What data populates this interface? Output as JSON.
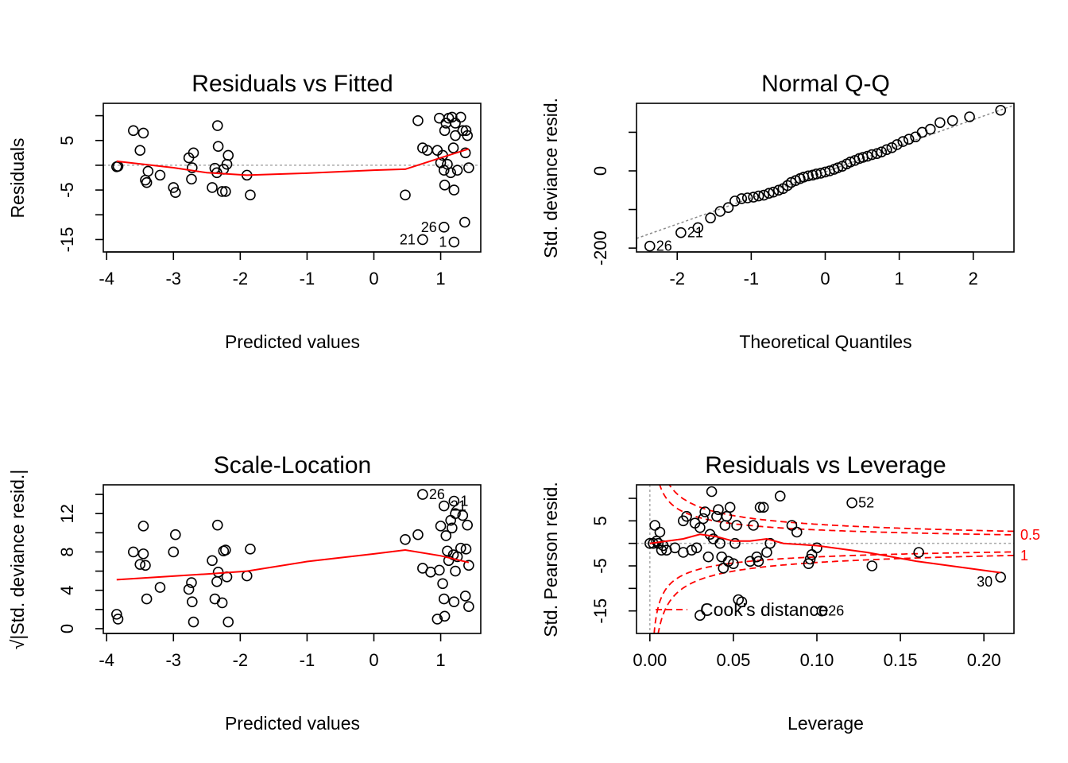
{
  "chart_data": [
    {
      "type": "scatter",
      "title": "Residuals vs Fitted",
      "xlabel": "Predicted values",
      "ylabel": "Residuals",
      "xlim": [
        -4.05,
        1.6
      ],
      "ylim": [
        -17.5,
        12.5
      ],
      "xticks": [
        -4,
        -3,
        -2,
        -1,
        0,
        1
      ],
      "yticks": [
        -15,
        -5,
        5
      ],
      "minor_yticks": [
        -10,
        0,
        10
      ],
      "reference_line_y": 0,
      "points": [
        [
          -3.85,
          -0.3
        ],
        [
          -3.83,
          -0.2
        ],
        [
          -3.6,
          7
        ],
        [
          -3.5,
          3
        ],
        [
          -3.45,
          6.5
        ],
        [
          -3.42,
          -3
        ],
        [
          -3.4,
          -3.5
        ],
        [
          -3.38,
          -1.2
        ],
        [
          -3.2,
          -2
        ],
        [
          -3,
          -4.5
        ],
        [
          -2.97,
          -5.5
        ],
        [
          -2.77,
          1.5
        ],
        [
          -2.73,
          -2.8
        ],
        [
          -2.72,
          -0.5
        ],
        [
          -2.7,
          2.5
        ],
        [
          -2.42,
          -4.5
        ],
        [
          -2.38,
          -0.6
        ],
        [
          -2.35,
          -1.5
        ],
        [
          -2.34,
          8
        ],
        [
          -2.33,
          3.8
        ],
        [
          -2.25,
          -0.8
        ],
        [
          -2.27,
          -5.3
        ],
        [
          -2.22,
          -5.3
        ],
        [
          -2.2,
          0.2
        ],
        [
          -2.18,
          2
        ],
        [
          -1.9,
          -2
        ],
        [
          -1.85,
          -6
        ],
        [
          0.47,
          -6
        ],
        [
          0.66,
          9
        ],
        [
          0.73,
          3.5
        ],
        [
          0.8,
          3
        ],
        [
          0.95,
          3
        ],
        [
          0.98,
          9.5
        ],
        [
          1,
          0.5
        ],
        [
          1.03,
          2
        ],
        [
          1.05,
          -1
        ],
        [
          1.06,
          -4
        ],
        [
          1.06,
          7
        ],
        [
          1.08,
          8.5
        ],
        [
          1.1,
          0.2
        ],
        [
          1.12,
          9.5
        ],
        [
          1.15,
          -1.5
        ],
        [
          1.17,
          9.7
        ],
        [
          1.19,
          3.5
        ],
        [
          1.2,
          -5
        ],
        [
          1.22,
          6
        ],
        [
          1.22,
          8.5
        ],
        [
          1.25,
          -1
        ],
        [
          1.3,
          9.7
        ],
        [
          1.33,
          7
        ],
        [
          1.37,
          2.5
        ],
        [
          1.38,
          7
        ],
        [
          1.4,
          6
        ],
        [
          1.42,
          -0.5
        ],
        [
          1.36,
          -11.5
        ],
        [
          0.73,
          -15
        ],
        [
          1.05,
          -12.5
        ],
        [
          1.2,
          -15.5
        ]
      ],
      "labeled_points": [
        {
          "x": 0.73,
          "y": -15,
          "label": "21"
        },
        {
          "x": 1.05,
          "y": -12.5,
          "label": "26"
        },
        {
          "x": 1.2,
          "y": -15.5,
          "label": "1"
        }
      ],
      "smooth_line": [
        [
          -3.85,
          0.8
        ],
        [
          -3,
          -0.5
        ],
        [
          -2.5,
          -1.5
        ],
        [
          -1.9,
          -2
        ],
        [
          -1,
          -1.6
        ],
        [
          0,
          -1
        ],
        [
          0.47,
          -0.8
        ],
        [
          1,
          1.5
        ],
        [
          1.42,
          3.3
        ]
      ]
    },
    {
      "type": "scatter",
      "title": "Normal Q-Q",
      "xlabel": "Theoretical Quantiles",
      "ylabel": "Std. deviance resid.",
      "xlim": [
        -2.55,
        2.55
      ],
      "ylim": [
        -210,
        175
      ],
      "xticks": [
        -2,
        -1,
        0,
        1,
        2
      ],
      "yticks": [
        -200,
        0
      ],
      "minor_yticks": [
        -100,
        100
      ],
      "reference_line": [
        [
          -2.55,
          -175
        ],
        [
          2.55,
          170
        ]
      ],
      "points": [
        [
          -2.37,
          -195
        ],
        [
          -1.95,
          -160
        ],
        [
          -1.72,
          -147
        ],
        [
          -1.55,
          -122
        ],
        [
          -1.42,
          -105
        ],
        [
          -1.31,
          -95
        ],
        [
          -1.22,
          -78
        ],
        [
          -1.13,
          -72
        ],
        [
          -1.05,
          -70
        ],
        [
          -0.97,
          -68
        ],
        [
          -0.9,
          -65
        ],
        [
          -0.83,
          -63
        ],
        [
          -0.76,
          -58
        ],
        [
          -0.7,
          -55
        ],
        [
          -0.63,
          -50
        ],
        [
          -0.57,
          -46
        ],
        [
          -0.51,
          -38
        ],
        [
          -0.46,
          -30
        ],
        [
          -0.4,
          -25
        ],
        [
          -0.34,
          -20
        ],
        [
          -0.29,
          -16
        ],
        [
          -0.23,
          -13
        ],
        [
          -0.17,
          -11
        ],
        [
          -0.12,
          -8
        ],
        [
          -0.06,
          -6
        ],
        [
          0,
          -3
        ],
        [
          0.06,
          0
        ],
        [
          0.12,
          4
        ],
        [
          0.17,
          8
        ],
        [
          0.23,
          12
        ],
        [
          0.29,
          18
        ],
        [
          0.34,
          23
        ],
        [
          0.4,
          27
        ],
        [
          0.46,
          32
        ],
        [
          0.51,
          35
        ],
        [
          0.57,
          38
        ],
        [
          0.63,
          42
        ],
        [
          0.7,
          45
        ],
        [
          0.76,
          49
        ],
        [
          0.83,
          55
        ],
        [
          0.9,
          60
        ],
        [
          0.97,
          68
        ],
        [
          1.05,
          76
        ],
        [
          1.13,
          82
        ],
        [
          1.22,
          88
        ],
        [
          1.31,
          100
        ],
        [
          1.42,
          108
        ],
        [
          1.55,
          125
        ],
        [
          1.72,
          130
        ],
        [
          1.95,
          140
        ],
        [
          2.37,
          157
        ]
      ],
      "labeled_points": [
        {
          "x": -2.37,
          "y": -195,
          "label": "26"
        },
        {
          "x": -1.95,
          "y": -160,
          "label": "21"
        }
      ]
    },
    {
      "type": "scatter",
      "title": "Scale-Location",
      "xlabel": "Predicted values",
      "ylabel": "√|Std. deviance resid.|",
      "xlim": [
        -4.05,
        1.6
      ],
      "ylim": [
        -0.5,
        15
      ],
      "xticks": [
        -4,
        -3,
        -2,
        -1,
        0,
        1
      ],
      "yticks": [
        0,
        4,
        8,
        12
      ],
      "minor_yticks": [
        2,
        6,
        10,
        14
      ],
      "points": [
        [
          -3.85,
          1.5
        ],
        [
          -3.83,
          1
        ],
        [
          -3.6,
          8
        ],
        [
          -3.5,
          6.7
        ],
        [
          -3.45,
          10.7
        ],
        [
          -3.45,
          7.8
        ],
        [
          -3.42,
          6.6
        ],
        [
          -3.4,
          3.1
        ],
        [
          -3.2,
          4.3
        ],
        [
          -3,
          8
        ],
        [
          -2.97,
          9.8
        ],
        [
          -2.77,
          4.1
        ],
        [
          -2.73,
          4.8
        ],
        [
          -2.72,
          2.8
        ],
        [
          -2.7,
          0.7
        ],
        [
          -2.42,
          7.1
        ],
        [
          -2.38,
          3.1
        ],
        [
          -2.35,
          4.9
        ],
        [
          -2.34,
          10.8
        ],
        [
          -2.33,
          5.9
        ],
        [
          -2.25,
          8.1
        ],
        [
          -2.27,
          2.7
        ],
        [
          -2.22,
          8.2
        ],
        [
          -2.2,
          5.4
        ],
        [
          -2.18,
          0.7
        ],
        [
          -1.9,
          5.5
        ],
        [
          -1.85,
          8.3
        ],
        [
          0.47,
          9.3
        ],
        [
          0.66,
          9.8
        ],
        [
          0.73,
          6.3
        ],
        [
          0.85,
          5.9
        ],
        [
          0.95,
          1
        ],
        [
          0.98,
          6.1
        ],
        [
          1,
          10.7
        ],
        [
          1.03,
          4.7
        ],
        [
          1.05,
          3.1
        ],
        [
          1.06,
          1.3
        ],
        [
          1.08,
          9.7
        ],
        [
          1.1,
          8.1
        ],
        [
          1.12,
          7.1
        ],
        [
          1.15,
          11.3
        ],
        [
          1.17,
          10.5
        ],
        [
          1.19,
          7.7
        ],
        [
          1.2,
          2.8
        ],
        [
          1.22,
          12
        ],
        [
          1.22,
          6
        ],
        [
          1.25,
          7.5
        ],
        [
          1.3,
          8.4
        ],
        [
          1.33,
          11.8
        ],
        [
          1.37,
          3.4
        ],
        [
          1.38,
          8.3
        ],
        [
          1.4,
          10.8
        ],
        [
          1.42,
          6.6
        ],
        [
          1.42,
          2.3
        ],
        [
          0.73,
          14
        ],
        [
          1.05,
          12.8
        ],
        [
          1.2,
          13.3
        ]
      ],
      "labeled_points": [
        {
          "x": 0.73,
          "y": 14,
          "label": "26"
        },
        {
          "x": 1.05,
          "y": 12.8,
          "label": "21"
        },
        {
          "x": 1.2,
          "y": 13.3,
          "label": "1"
        }
      ],
      "smooth_line": [
        [
          -3.85,
          5.1
        ],
        [
          -2.5,
          5.7
        ],
        [
          -1.9,
          6
        ],
        [
          -1,
          7
        ],
        [
          0,
          7.8
        ],
        [
          0.47,
          8.2
        ],
        [
          1,
          7.6
        ],
        [
          1.42,
          6.9
        ]
      ]
    },
    {
      "type": "scatter",
      "title": "Residuals vs Leverage",
      "xlabel": "Leverage",
      "ylabel": "Std. Pearson resid.",
      "xlim": [
        -0.008,
        0.218
      ],
      "ylim": [
        -20,
        13
      ],
      "xticks": [
        0.0,
        0.05,
        0.1,
        0.15,
        0.2
      ],
      "xtick_labels": [
        "0.00",
        "0.05",
        "0.10",
        "0.15",
        "0.20"
      ],
      "yticks": [
        -15,
        -5,
        5
      ],
      "minor_yticks": [
        -10,
        0,
        10
      ],
      "reference_line_y": 0,
      "reference_line_x": 0,
      "legend": "Cook's distance",
      "cooks_contours": [
        "0.5",
        "1"
      ],
      "points": [
        [
          0,
          0
        ],
        [
          0.002,
          0
        ],
        [
          0.003,
          4
        ],
        [
          0.004,
          0.5
        ],
        [
          0.005,
          0
        ],
        [
          0.006,
          2.5
        ],
        [
          0.007,
          -1.5
        ],
        [
          0.008,
          -0.5
        ],
        [
          0.01,
          -1.5
        ],
        [
          0.015,
          -1
        ],
        [
          0.02,
          -2
        ],
        [
          0.02,
          5
        ],
        [
          0.022,
          6
        ],
        [
          0.025,
          -1.5
        ],
        [
          0.027,
          4.5
        ],
        [
          0.028,
          -1
        ],
        [
          0.03,
          3.5
        ],
        [
          0.032,
          5.5
        ],
        [
          0.033,
          7
        ],
        [
          0.035,
          -3
        ],
        [
          0.036,
          2
        ],
        [
          0.037,
          11.5
        ],
        [
          0.038,
          1
        ],
        [
          0.04,
          6
        ],
        [
          0.041,
          7.5
        ],
        [
          0.042,
          0
        ],
        [
          0.043,
          -3
        ],
        [
          0.044,
          -5.5
        ],
        [
          0.045,
          4
        ],
        [
          0.046,
          6
        ],
        [
          0.047,
          -4
        ],
        [
          0.048,
          8
        ],
        [
          0.05,
          -4.5
        ],
        [
          0.051,
          0
        ],
        [
          0.052,
          4
        ],
        [
          0.053,
          -12.5
        ],
        [
          0.055,
          -13
        ],
        [
          0.06,
          -4
        ],
        [
          0.062,
          4
        ],
        [
          0.064,
          -3
        ],
        [
          0.065,
          -4
        ],
        [
          0.066,
          8
        ],
        [
          0.068,
          8
        ],
        [
          0.07,
          -2
        ],
        [
          0.072,
          0
        ],
        [
          0.078,
          10.5
        ],
        [
          0.085,
          4
        ],
        [
          0.088,
          2.5
        ],
        [
          0.095,
          -4.5
        ],
        [
          0.096,
          -3.5
        ],
        [
          0.097,
          -2.5
        ],
        [
          0.1,
          -1
        ],
        [
          0.03,
          -16
        ],
        [
          0.103,
          -15
        ],
        [
          0.121,
          9
        ],
        [
          0.133,
          -5
        ],
        [
          0.161,
          -2
        ],
        [
          0.21,
          -7.5
        ]
      ],
      "labeled_points": [
        {
          "x": 0.121,
          "y": 9,
          "label": "52"
        },
        {
          "x": 0.103,
          "y": -15,
          "label": "26"
        },
        {
          "x": 0.21,
          "y": -7.5,
          "label": "30"
        }
      ],
      "smooth_line": [
        [
          0,
          0
        ],
        [
          0.02,
          1
        ],
        [
          0.03,
          2
        ],
        [
          0.04,
          1.5
        ],
        [
          0.05,
          0.5
        ],
        [
          0.06,
          0.5
        ],
        [
          0.07,
          1
        ],
        [
          0.08,
          0
        ],
        [
          0.1,
          -0.5
        ],
        [
          0.13,
          -2
        ],
        [
          0.16,
          -4
        ],
        [
          0.21,
          -6.5
        ]
      ]
    }
  ]
}
